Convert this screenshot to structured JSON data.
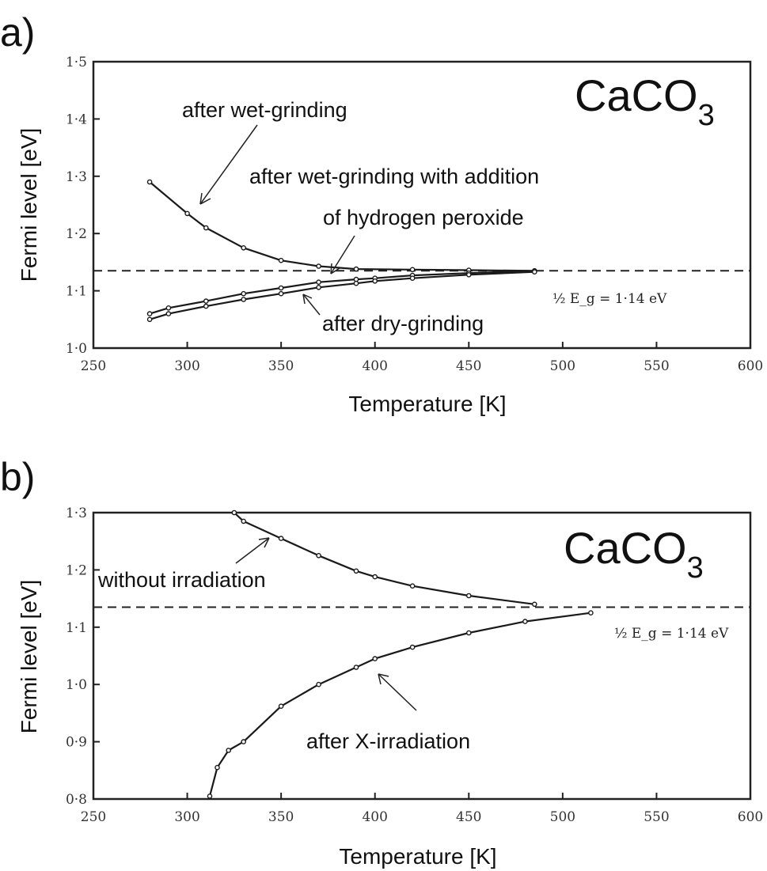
{
  "chart_data": [
    {
      "panel": "a)",
      "type": "line",
      "compound": {
        "main": "CaCO",
        "sub": "3"
      },
      "xlabel": "Temperature [K]",
      "ylabel": "Fermi level [eV]",
      "xlim": [
        250,
        600
      ],
      "ylim": [
        1.0,
        1.5
      ],
      "xticks": [
        "250",
        "300",
        "350",
        "400",
        "450",
        "500",
        "550",
        "600"
      ],
      "yticks": [
        "1·0",
        "1·1",
        "1·2",
        "1·3",
        "1·4",
        "1·5"
      ],
      "reference": {
        "y": 1.135,
        "x_start": 250,
        "x_end": 600,
        "label": "½ E_g = 1·14 eV"
      },
      "series": [
        {
          "name": "after wet-grinding",
          "x": [
            280,
            300,
            310,
            330,
            350,
            370,
            390,
            420,
            450,
            485
          ],
          "y": [
            1.29,
            1.235,
            1.21,
            1.175,
            1.153,
            1.143,
            1.138,
            1.137,
            1.136,
            1.135
          ]
        },
        {
          "name": "after wet-grinding with addition of hydrogen peroxide",
          "x": [
            280,
            290,
            310,
            330,
            350,
            370,
            390,
            400,
            420,
            450,
            485
          ],
          "y": [
            1.06,
            1.07,
            1.082,
            1.095,
            1.105,
            1.115,
            1.12,
            1.122,
            1.127,
            1.131,
            1.135
          ]
        },
        {
          "name": "after dry-grinding",
          "x": [
            280,
            290,
            310,
            330,
            350,
            370,
            390,
            400,
            420,
            450,
            485
          ],
          "y": [
            1.05,
            1.06,
            1.073,
            1.085,
            1.095,
            1.106,
            1.113,
            1.117,
            1.122,
            1.128,
            1.133
          ]
        }
      ],
      "annotations": [
        "after wet-grinding",
        "after wet-grinding with addition",
        "of hydrogen peroxide",
        "after dry-grinding"
      ]
    },
    {
      "panel": "b)",
      "type": "line",
      "compound": {
        "main": "CaCO",
        "sub": "3"
      },
      "xlabel": "Temperature [K]",
      "ylabel": "Fermi level [eV]",
      "xlim": [
        250,
        600
      ],
      "ylim": [
        0.8,
        1.3
      ],
      "xticks": [
        "250",
        "300",
        "350",
        "400",
        "450",
        "500",
        "550",
        "600"
      ],
      "yticks": [
        "0·8",
        "0·9",
        "1·0",
        "1·1",
        "1·2",
        "1·3"
      ],
      "reference": {
        "y": 1.135,
        "x_start": 250,
        "x_end": 600,
        "label": "½ E_g = 1·14 eV"
      },
      "series": [
        {
          "name": "without irradiation",
          "x": [
            325,
            330,
            350,
            370,
            390,
            400,
            420,
            450,
            485
          ],
          "y": [
            1.3,
            1.285,
            1.255,
            1.225,
            1.198,
            1.188,
            1.172,
            1.155,
            1.14
          ]
        },
        {
          "name": "after X-irradiation",
          "x": [
            312,
            316,
            322,
            330,
            350,
            370,
            390,
            400,
            420,
            450,
            480,
            515
          ],
          "y": [
            0.805,
            0.855,
            0.885,
            0.9,
            0.962,
            1.0,
            1.03,
            1.045,
            1.065,
            1.09,
            1.11,
            1.125
          ]
        }
      ],
      "annotations": [
        "without irradiation",
        "after X-irradiation"
      ]
    }
  ]
}
